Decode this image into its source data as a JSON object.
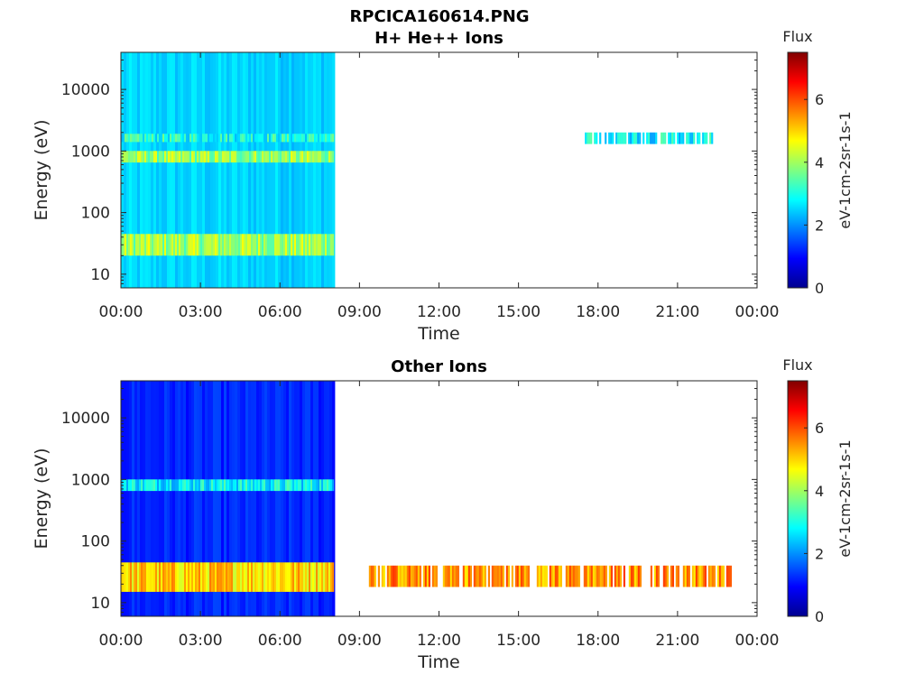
{
  "figure_title": "RPCICA160614.PNG",
  "chart_data": [
    {
      "type": "heatmap",
      "title": "H+ He++ Ions",
      "xlabel": "Time",
      "ylabel": "Energy (eV)",
      "yscale": "log",
      "ylim": [
        6,
        40000
      ],
      "xlim_hours": [
        0,
        24
      ],
      "x_ticks": [
        "00:00",
        "03:00",
        "06:00",
        "09:00",
        "12:00",
        "15:00",
        "18:00",
        "21:00",
        "00:00"
      ],
      "y_ticks": [
        "10",
        "100",
        "1000",
        "10000"
      ],
      "colorbar": {
        "label": "Flux",
        "unit": "eV-1cm-2sr-1s-1",
        "range": [
          0,
          7.5
        ],
        "ticks": [
          "0",
          "2",
          "4",
          "6"
        ]
      },
      "regions": [
        {
          "desc": "continuous data coverage",
          "t_start": "00:00",
          "t_end": "08:00",
          "background_flux": 2.5
        },
        {
          "desc": "low-energy band",
          "t_start": "00:00",
          "t_end": "08:00",
          "energy_eV": [
            20,
            45
          ],
          "flux": 4.0
        },
        {
          "desc": "~800 eV band",
          "t_start": "00:00",
          "t_end": "08:00",
          "energy_eV": [
            650,
            1000
          ],
          "flux": 3.9
        },
        {
          "desc": "~1.6 keV band",
          "t_start": "00:00",
          "t_end": "08:00",
          "energy_eV": [
            1400,
            1900
          ],
          "flux": 3.0
        },
        {
          "desc": "sparse ~1.6 keV band",
          "t_start": "17:30",
          "t_end": "22:20",
          "energy_eV": [
            1300,
            2000
          ],
          "flux": 2.8
        }
      ]
    },
    {
      "type": "heatmap",
      "title": "Other Ions",
      "xlabel": "Time",
      "ylabel": "Energy (eV)",
      "yscale": "log",
      "ylim": [
        6,
        40000
      ],
      "xlim_hours": [
        0,
        24
      ],
      "x_ticks": [
        "00:00",
        "03:00",
        "06:00",
        "09:00",
        "12:00",
        "15:00",
        "18:00",
        "21:00",
        "00:00"
      ],
      "y_ticks": [
        "10",
        "100",
        "1000",
        "10000"
      ],
      "colorbar": {
        "label": "Flux",
        "unit": "eV-1cm-2sr-1s-1",
        "range": [
          0,
          7.5
        ],
        "ticks": [
          "0",
          "2",
          "4",
          "6"
        ]
      },
      "regions": [
        {
          "desc": "continuous data coverage",
          "t_start": "00:00",
          "t_end": "08:00",
          "background_flux": 1.2
        },
        {
          "desc": "low-energy band",
          "t_start": "00:00",
          "t_end": "08:00",
          "energy_eV": [
            15,
            45
          ],
          "flux": 5.0
        },
        {
          "desc": "~800 eV band",
          "t_start": "00:00",
          "t_end": "08:00",
          "energy_eV": [
            650,
            1000
          ],
          "flux": 2.8
        },
        {
          "desc": "low-energy band",
          "t_start": "09:05",
          "t_end": "23:00",
          "energy_eV": [
            18,
            40
          ],
          "flux": 5.5
        }
      ]
    }
  ]
}
